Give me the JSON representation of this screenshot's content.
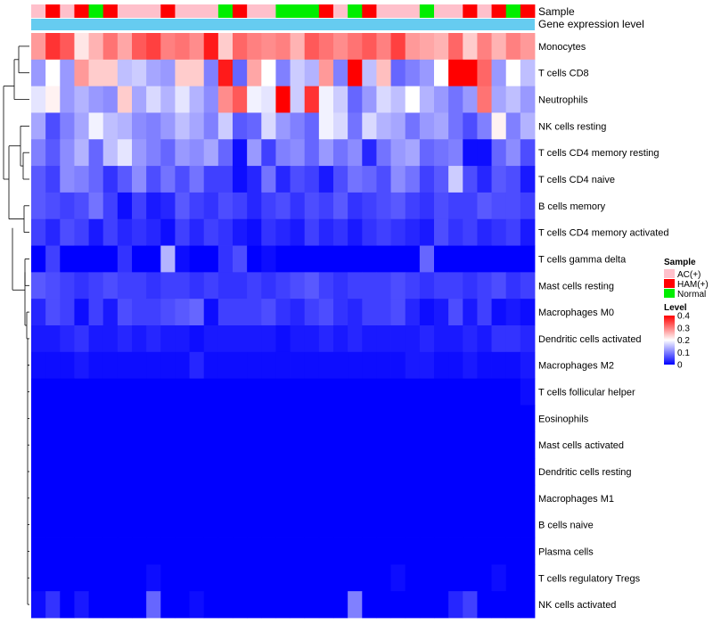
{
  "chart_data": {
    "type": "heatmap",
    "annotation_labels": {
      "sample": "Sample",
      "gene_expression": "Gene expression level"
    },
    "sample_groups": [
      "AC(+)",
      "HAM(+)",
      "Normal"
    ],
    "sample_colors": {
      "AC(+)": "#ffc0cb",
      "HAM(+)": "#ff0000",
      "Normal": "#00ee00"
    },
    "gene_expression_color": "#66ccf0",
    "samples": [
      "AC(+)",
      "HAM(+)",
      "AC(+)",
      "HAM(+)",
      "Normal",
      "HAM(+)",
      "AC(+)",
      "AC(+)",
      "AC(+)",
      "HAM(+)",
      "AC(+)",
      "AC(+)",
      "AC(+)",
      "Normal",
      "HAM(+)",
      "AC(+)",
      "AC(+)",
      "Normal",
      "Normal",
      "Normal",
      "HAM(+)",
      "AC(+)",
      "Normal",
      "HAM(+)",
      "AC(+)",
      "AC(+)",
      "AC(+)",
      "Normal",
      "AC(+)",
      "AC(+)",
      "HAM(+)",
      "AC(+)",
      "HAM(+)",
      "Normal",
      "HAM(+)"
    ],
    "rows": [
      "Monocytes",
      "T cells CD8",
      "Neutrophils",
      "NK cells resting",
      "T cells CD4 memory resting",
      "T cells CD4 naive",
      "B cells memory",
      "T cells CD4 memory activated",
      "T cells gamma delta",
      "Mast cells resting",
      "Macrophages M0",
      "Dendritic cells activated",
      "Macrophages M2",
      "T cells follicular helper",
      "Eosinophils",
      "Mast cells activated",
      "Dendritic cells resting",
      "Macrophages M1",
      "B cells naive",
      "Plasma cells",
      "T cells regulatory  Tregs",
      "NK cells activated"
    ],
    "values": [
      [
        0.28,
        0.36,
        0.33,
        0.22,
        0.26,
        0.31,
        0.27,
        0.33,
        0.35,
        0.3,
        0.31,
        0.29,
        0.38,
        0.24,
        0.32,
        0.3,
        0.29,
        0.3,
        0.26,
        0.33,
        0.31,
        0.29,
        0.31,
        0.33,
        0.3,
        0.35,
        0.28,
        0.27,
        0.26,
        0.32,
        0.24,
        0.3,
        0.26,
        0.3,
        0.28
      ],
      [
        0.12,
        0.2,
        0.12,
        0.28,
        0.24,
        0.24,
        0.15,
        0.16,
        0.13,
        0.12,
        0.24,
        0.24,
        0.1,
        0.38,
        0.08,
        0.27,
        0.2,
        0.1,
        0.16,
        0.14,
        0.28,
        0.1,
        0.4,
        0.15,
        0.25,
        0.08,
        0.1,
        0.12,
        0.2,
        0.4,
        0.4,
        0.32,
        0.12,
        0.2,
        0.15
      ],
      [
        0.18,
        0.21,
        0.12,
        0.14,
        0.12,
        0.11,
        0.24,
        0.13,
        0.17,
        0.14,
        0.18,
        0.14,
        0.11,
        0.29,
        0.33,
        0.19,
        0.18,
        0.4,
        0.16,
        0.36,
        0.19,
        0.16,
        0.08,
        0.12,
        0.17,
        0.15,
        0.2,
        0.14,
        0.12,
        0.09,
        0.12,
        0.31,
        0.13,
        0.15,
        0.12
      ],
      [
        0.13,
        0.06,
        0.1,
        0.13,
        0.19,
        0.15,
        0.14,
        0.11,
        0.1,
        0.12,
        0.15,
        0.13,
        0.1,
        0.16,
        0.07,
        0.08,
        0.17,
        0.12,
        0.1,
        0.08,
        0.19,
        0.17,
        0.09,
        0.17,
        0.14,
        0.13,
        0.09,
        0.12,
        0.13,
        0.09,
        0.06,
        0.1,
        0.21,
        0.1,
        0.14
      ],
      [
        0.1,
        0.07,
        0.11,
        0.14,
        0.08,
        0.15,
        0.18,
        0.12,
        0.1,
        0.08,
        0.12,
        0.11,
        0.13,
        0.08,
        0.01,
        0.12,
        0.05,
        0.1,
        0.11,
        0.08,
        0.12,
        0.09,
        0.11,
        0.03,
        0.09,
        0.12,
        0.13,
        0.08,
        0.09,
        0.1,
        0.01,
        0.01,
        0.08,
        0.11,
        0.06
      ],
      [
        0.07,
        0.05,
        0.11,
        0.1,
        0.08,
        0.04,
        0.07,
        0.11,
        0.06,
        0.09,
        0.06,
        0.09,
        0.05,
        0.05,
        0.01,
        0.03,
        0.09,
        0.03,
        0.06,
        0.05,
        0.02,
        0.06,
        0.09,
        0.08,
        0.06,
        0.11,
        0.09,
        0.05,
        0.07,
        0.16,
        0.06,
        0.03,
        0.07,
        0.06,
        0.02
      ],
      [
        0.07,
        0.06,
        0.05,
        0.06,
        0.09,
        0.05,
        0.01,
        0.05,
        0.02,
        0.03,
        0.07,
        0.05,
        0.04,
        0.06,
        0.05,
        0.03,
        0.05,
        0.06,
        0.04,
        0.06,
        0.05,
        0.07,
        0.04,
        0.05,
        0.06,
        0.07,
        0.05,
        0.04,
        0.06,
        0.05,
        0.05,
        0.07,
        0.06,
        0.06,
        0.05
      ],
      [
        0.05,
        0.03,
        0.06,
        0.05,
        0.02,
        0.05,
        0.03,
        0.04,
        0.03,
        0.01,
        0.05,
        0.03,
        0.05,
        0.04,
        0.02,
        0.01,
        0.04,
        0.03,
        0.02,
        0.05,
        0.03,
        0.04,
        0.02,
        0.04,
        0.05,
        0.04,
        0.03,
        0.02,
        0.06,
        0.04,
        0.05,
        0.03,
        0.04,
        0.05,
        0.02
      ],
      [
        0.0,
        0.05,
        0.0,
        0.0,
        0.0,
        0.0,
        0.04,
        0.0,
        0.0,
        0.14,
        0.01,
        0.0,
        0.0,
        0.04,
        0.06,
        0.0,
        0.01,
        0.0,
        0.0,
        0.0,
        0.0,
        0.0,
        0.0,
        0.0,
        0.0,
        0.0,
        0.0,
        0.08,
        0.0,
        0.0,
        0.0,
        0.0,
        0.0,
        0.0,
        0.0
      ],
      [
        0.07,
        0.06,
        0.05,
        0.04,
        0.05,
        0.06,
        0.05,
        0.05,
        0.04,
        0.05,
        0.05,
        0.04,
        0.05,
        0.04,
        0.04,
        0.05,
        0.04,
        0.05,
        0.06,
        0.07,
        0.05,
        0.04,
        0.05,
        0.05,
        0.05,
        0.06,
        0.05,
        0.04,
        0.05,
        0.05,
        0.04,
        0.05,
        0.06,
        0.04,
        0.05
      ],
      [
        0.03,
        0.06,
        0.05,
        0.01,
        0.05,
        0.02,
        0.06,
        0.05,
        0.05,
        0.06,
        0.07,
        0.08,
        0.01,
        0.05,
        0.05,
        0.05,
        0.06,
        0.04,
        0.03,
        0.05,
        0.06,
        0.04,
        0.03,
        0.05,
        0.05,
        0.06,
        0.03,
        0.01,
        0.02,
        0.06,
        0.02,
        0.05,
        0.01,
        0.02,
        0.01
      ],
      [
        0.02,
        0.02,
        0.03,
        0.04,
        0.02,
        0.02,
        0.03,
        0.02,
        0.03,
        0.02,
        0.02,
        0.01,
        0.02,
        0.02,
        0.02,
        0.02,
        0.02,
        0.01,
        0.02,
        0.02,
        0.03,
        0.02,
        0.03,
        0.02,
        0.02,
        0.02,
        0.02,
        0.03,
        0.02,
        0.02,
        0.03,
        0.02,
        0.04,
        0.04,
        0.03
      ],
      [
        0.01,
        0.01,
        0.01,
        0.02,
        0.01,
        0.01,
        0.01,
        0.01,
        0.01,
        0.01,
        0.01,
        0.03,
        0.01,
        0.01,
        0.01,
        0.01,
        0.01,
        0.01,
        0.01,
        0.01,
        0.01,
        0.01,
        0.01,
        0.01,
        0.01,
        0.01,
        0.02,
        0.02,
        0.01,
        0.01,
        0.02,
        0.01,
        0.01,
        0.01,
        0.02
      ],
      [
        0.0,
        0.0,
        0.0,
        0.0,
        0.0,
        0.0,
        0.0,
        0.0,
        0.0,
        0.0,
        0.0,
        0.0,
        0.0,
        0.0,
        0.0,
        0.0,
        0.0,
        0.0,
        0.0,
        0.0,
        0.0,
        0.0,
        0.0,
        0.0,
        0.0,
        0.0,
        0.0,
        0.0,
        0.0,
        0.0,
        0.0,
        0.0,
        0.0,
        0.0,
        0.01
      ],
      [
        0.0,
        0.0,
        0.0,
        0.0,
        0.0,
        0.0,
        0.0,
        0.0,
        0.0,
        0.0,
        0.0,
        0.0,
        0.0,
        0.0,
        0.0,
        0.0,
        0.0,
        0.0,
        0.0,
        0.0,
        0.0,
        0.0,
        0.0,
        0.0,
        0.0,
        0.0,
        0.0,
        0.0,
        0.0,
        0.0,
        0.0,
        0.0,
        0.0,
        0.0,
        0.0
      ],
      [
        0.0,
        0.0,
        0.0,
        0.0,
        0.0,
        0.0,
        0.0,
        0.0,
        0.0,
        0.0,
        0.0,
        0.0,
        0.0,
        0.0,
        0.0,
        0.0,
        0.0,
        0.0,
        0.0,
        0.0,
        0.0,
        0.0,
        0.0,
        0.0,
        0.0,
        0.0,
        0.0,
        0.0,
        0.0,
        0.0,
        0.0,
        0.0,
        0.0,
        0.0,
        0.0
      ],
      [
        0.0,
        0.0,
        0.0,
        0.0,
        0.0,
        0.0,
        0.0,
        0.0,
        0.0,
        0.0,
        0.0,
        0.0,
        0.0,
        0.0,
        0.0,
        0.0,
        0.0,
        0.0,
        0.0,
        0.0,
        0.0,
        0.0,
        0.0,
        0.0,
        0.0,
        0.0,
        0.0,
        0.0,
        0.0,
        0.0,
        0.0,
        0.0,
        0.0,
        0.0,
        0.0
      ],
      [
        0.0,
        0.0,
        0.0,
        0.0,
        0.0,
        0.0,
        0.0,
        0.0,
        0.0,
        0.0,
        0.0,
        0.0,
        0.0,
        0.0,
        0.0,
        0.0,
        0.0,
        0.0,
        0.0,
        0.0,
        0.0,
        0.0,
        0.0,
        0.0,
        0.0,
        0.0,
        0.0,
        0.0,
        0.0,
        0.0,
        0.0,
        0.0,
        0.0,
        0.0,
        0.0
      ],
      [
        0.0,
        0.0,
        0.0,
        0.0,
        0.0,
        0.0,
        0.0,
        0.0,
        0.0,
        0.0,
        0.0,
        0.0,
        0.0,
        0.0,
        0.0,
        0.0,
        0.0,
        0.0,
        0.0,
        0.0,
        0.0,
        0.0,
        0.0,
        0.0,
        0.0,
        0.0,
        0.0,
        0.0,
        0.0,
        0.0,
        0.0,
        0.0,
        0.0,
        0.0,
        0.0
      ],
      [
        0.0,
        0.0,
        0.0,
        0.0,
        0.0,
        0.0,
        0.0,
        0.0,
        0.0,
        0.0,
        0.0,
        0.0,
        0.0,
        0.0,
        0.0,
        0.0,
        0.0,
        0.0,
        0.0,
        0.0,
        0.0,
        0.0,
        0.0,
        0.0,
        0.0,
        0.0,
        0.0,
        0.0,
        0.0,
        0.0,
        0.0,
        0.0,
        0.0,
        0.0,
        0.0
      ],
      [
        0.0,
        0.0,
        0.0,
        0.0,
        0.0,
        0.0,
        0.0,
        0.0,
        0.01,
        0.0,
        0.0,
        0.0,
        0.0,
        0.0,
        0.0,
        0.0,
        0.0,
        0.0,
        0.0,
        0.0,
        0.0,
        0.0,
        0.0,
        0.0,
        0.0,
        0.01,
        0.0,
        0.0,
        0.0,
        0.0,
        0.0,
        0.0,
        0.01,
        0.0,
        0.0
      ],
      [
        0.01,
        0.04,
        0.0,
        0.02,
        0.0,
        0.0,
        0.0,
        0.0,
        0.08,
        0.0,
        0.0,
        0.01,
        0.0,
        0.0,
        0.0,
        0.0,
        0.0,
        0.0,
        0.0,
        0.0,
        0.0,
        0.0,
        0.1,
        0.0,
        0.0,
        0.0,
        0.0,
        0.0,
        0.0,
        0.03,
        0.05,
        0.0,
        0.0,
        0.0,
        0.0
      ]
    ],
    "legend_sample_title": "Sample",
    "legend_level_title": "Level",
    "level_ticks": [
      "0.4",
      "0.3",
      "0.2",
      "0.1",
      "0"
    ],
    "level_range": [
      0,
      0.4
    ],
    "color_scale": [
      "#0000ff",
      "#ffffff",
      "#ff0000"
    ]
  }
}
